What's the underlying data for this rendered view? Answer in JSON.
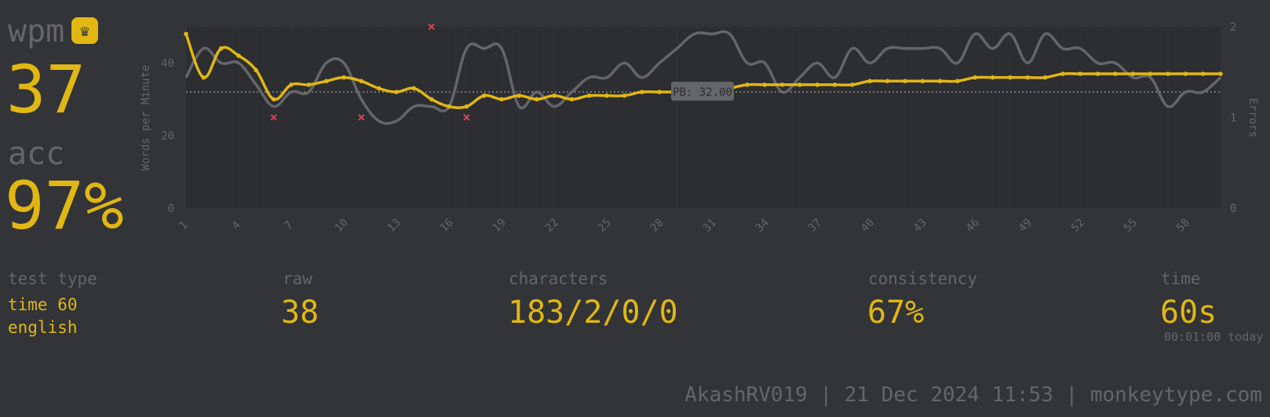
{
  "stats": {
    "wpm_label": "wpm",
    "wpm_value": "37",
    "acc_label": "acc",
    "acc_value": "97%",
    "test_type_label": "test type",
    "test_type_line1": "time 60",
    "test_type_line2": "english",
    "raw_label": "raw",
    "raw_value": "38",
    "characters_label": "characters",
    "characters_value": "183/2/0/0",
    "consistency_label": "consistency",
    "consistency_value": "67%",
    "time_label": "time",
    "time_value": "60s",
    "time_detail": "00:01:00 today"
  },
  "icons": {
    "crown": "crown-icon"
  },
  "footer": {
    "text": "AkashRV019  |  21 Dec 2024 11:53  |  monkeytype.com"
  },
  "colors": {
    "background": "#323437",
    "plot_background": "#2c2e31",
    "main": "#e2b714",
    "sub": "#646669",
    "raw_line": "#646669",
    "error": "#ca4754"
  },
  "chart_data": {
    "type": "line",
    "ylabel": "Words per Minute",
    "y2label": "Errors",
    "ylim": [
      0,
      50
    ],
    "y2lim": [
      0,
      2
    ],
    "yticks": [
      0,
      20,
      40
    ],
    "y2ticks": [
      0,
      1,
      2
    ],
    "xticks": [
      1,
      4,
      7,
      10,
      13,
      16,
      19,
      22,
      25,
      28,
      31,
      34,
      37,
      40,
      43,
      46,
      49,
      52,
      55,
      58
    ],
    "pb_value": 32,
    "pb_label": "PB: 32.00",
    "x": [
      1,
      2,
      3,
      4,
      5,
      6,
      7,
      8,
      9,
      10,
      11,
      12,
      13,
      14,
      15,
      16,
      17,
      18,
      19,
      20,
      21,
      22,
      23,
      24,
      25,
      26,
      27,
      28,
      29,
      30,
      31,
      32,
      33,
      34,
      35,
      36,
      37,
      38,
      39,
      40,
      41,
      42,
      43,
      44,
      45,
      46,
      47,
      48,
      49,
      50,
      51,
      52,
      53,
      54,
      55,
      56,
      57,
      58,
      59,
      60
    ],
    "series": [
      {
        "name": "wpm",
        "values": [
          48,
          36,
          44,
          42,
          38,
          30,
          34,
          34,
          35,
          36,
          35,
          33,
          32,
          33,
          30,
          28,
          28,
          31,
          30,
          31,
          30,
          31,
          30,
          31,
          31,
          31,
          32,
          32,
          32,
          32,
          32,
          33,
          34,
          34,
          34,
          34,
          34,
          34,
          34,
          35,
          35,
          35,
          35,
          35,
          35,
          36,
          36,
          36,
          36,
          36,
          37,
          37,
          37,
          37,
          37,
          37,
          37,
          37,
          37,
          37
        ]
      },
      {
        "name": "raw",
        "values": [
          36,
          44,
          40,
          40,
          34,
          28,
          32,
          32,
          40,
          40,
          30,
          24,
          24,
          28,
          28,
          28,
          44,
          44,
          44,
          28,
          32,
          28,
          32,
          36,
          36,
          40,
          36,
          40,
          44,
          48,
          48,
          48,
          40,
          40,
          32,
          36,
          40,
          36,
          44,
          40,
          44,
          44,
          44,
          44,
          40,
          48,
          44,
          48,
          40,
          48,
          44,
          44,
          40,
          40,
          36,
          36,
          28,
          32,
          32,
          36
        ]
      },
      {
        "name": "errors",
        "x": [
          6,
          11,
          15,
          17
        ],
        "values": [
          1,
          1,
          2,
          1
        ]
      }
    ]
  }
}
